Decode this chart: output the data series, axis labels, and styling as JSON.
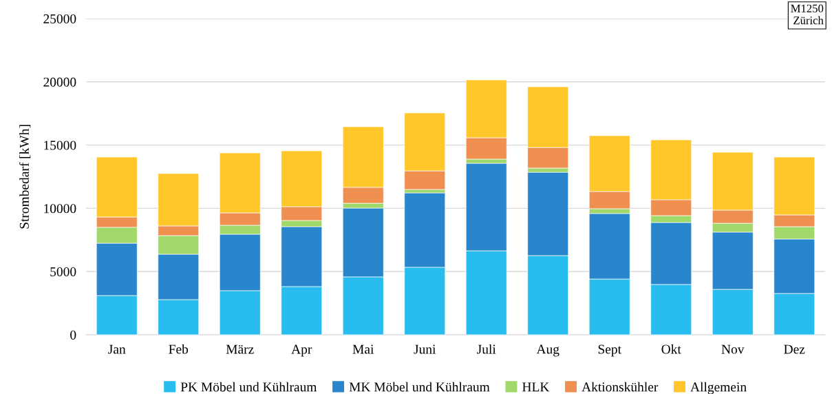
{
  "chart_data": {
    "type": "bar",
    "stacked": true,
    "ylabel": "Strombedarf [kWh]",
    "categories": [
      "Jan",
      "Feb",
      "März",
      "Apr",
      "Mai",
      "Juni",
      "Juli",
      "Aug",
      "Sept",
      "Okt",
      "Nov",
      "Dez"
    ],
    "series": [
      {
        "name": "PK Möbel und Kühlraum",
        "color": "#29bdef",
        "values": [
          3100,
          2780,
          3490,
          3810,
          4580,
          5340,
          6640,
          6260,
          4410,
          3980,
          3590,
          3270
        ]
      },
      {
        "name": "MK Möbel und Kühlraum",
        "color": "#2986cc",
        "values": [
          4140,
          3590,
          4460,
          4740,
          5440,
          5880,
          6920,
          6590,
          5180,
          4900,
          4530,
          4300
        ]
      },
      {
        "name": "HLK",
        "color": "#a0d86a",
        "values": [
          1260,
          1470,
          710,
          490,
          380,
          270,
          330,
          330,
          380,
          540,
          700,
          980
        ]
      },
      {
        "name": "Aktionskühler",
        "color": "#ef8f50",
        "values": [
          810,
          770,
          980,
          1090,
          1260,
          1470,
          1690,
          1630,
          1360,
          1260,
          1040,
          930
        ]
      },
      {
        "name": "Allgemein",
        "color": "#ffc72a",
        "values": [
          4740,
          4140,
          4740,
          4410,
          4790,
          4580,
          4570,
          4800,
          4410,
          4730,
          4570,
          4570
        ]
      }
    ],
    "ylim": [
      0,
      25000
    ],
    "yticks": [
      0,
      5000,
      10000,
      15000,
      20000,
      25000
    ],
    "grid": "y",
    "legend": "bottom",
    "annotations": [
      "M1250\nZürich"
    ]
  }
}
